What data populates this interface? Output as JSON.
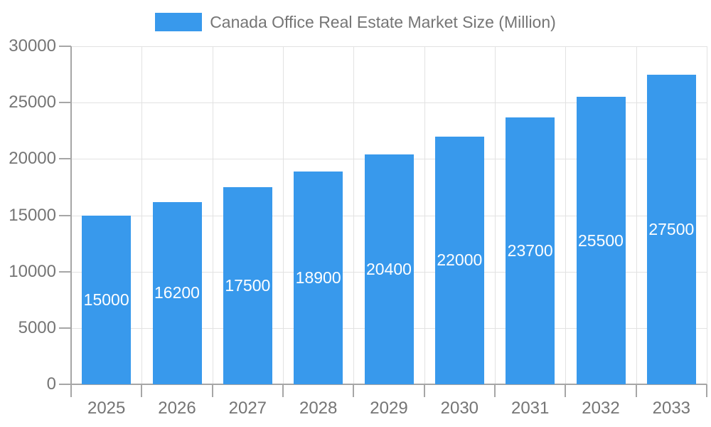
{
  "legend": {
    "label": "Canada Office Real Estate Market Size (Million)",
    "swatch_color": "#3899EC"
  },
  "chart_data": {
    "type": "bar",
    "title": "Canada Office Real Estate Market Size (Million)",
    "categories": [
      "2025",
      "2026",
      "2027",
      "2028",
      "2029",
      "2030",
      "2031",
      "2032",
      "2033"
    ],
    "series": [
      {
        "name": "Canada Office Real Estate Market Size (Million)",
        "values": [
          15000,
          16200,
          17500,
          18900,
          20400,
          22000,
          23700,
          25500,
          27500
        ]
      }
    ],
    "bar_labels": [
      "15000",
      "16200",
      "17500",
      "18900",
      "20400",
      "22000",
      "23700",
      "25500",
      "27500"
    ],
    "xlabel": "",
    "ylabel": "",
    "ylim": [
      0,
      30000
    ],
    "yticks": [
      0,
      5000,
      10000,
      15000,
      20000,
      25000,
      30000
    ],
    "ytick_labels": [
      "0",
      "5000",
      "10000",
      "15000",
      "20000",
      "25000",
      "30000"
    ],
    "grid": true,
    "legend_position": "top",
    "colors": {
      "bar": "#3899EC",
      "bar_label_text": "#FFFFFF",
      "axis_text": "#757575",
      "gridline": "#E2E2E2",
      "axis_line": "#A6A6A6",
      "background": "#FFFFFF"
    }
  }
}
